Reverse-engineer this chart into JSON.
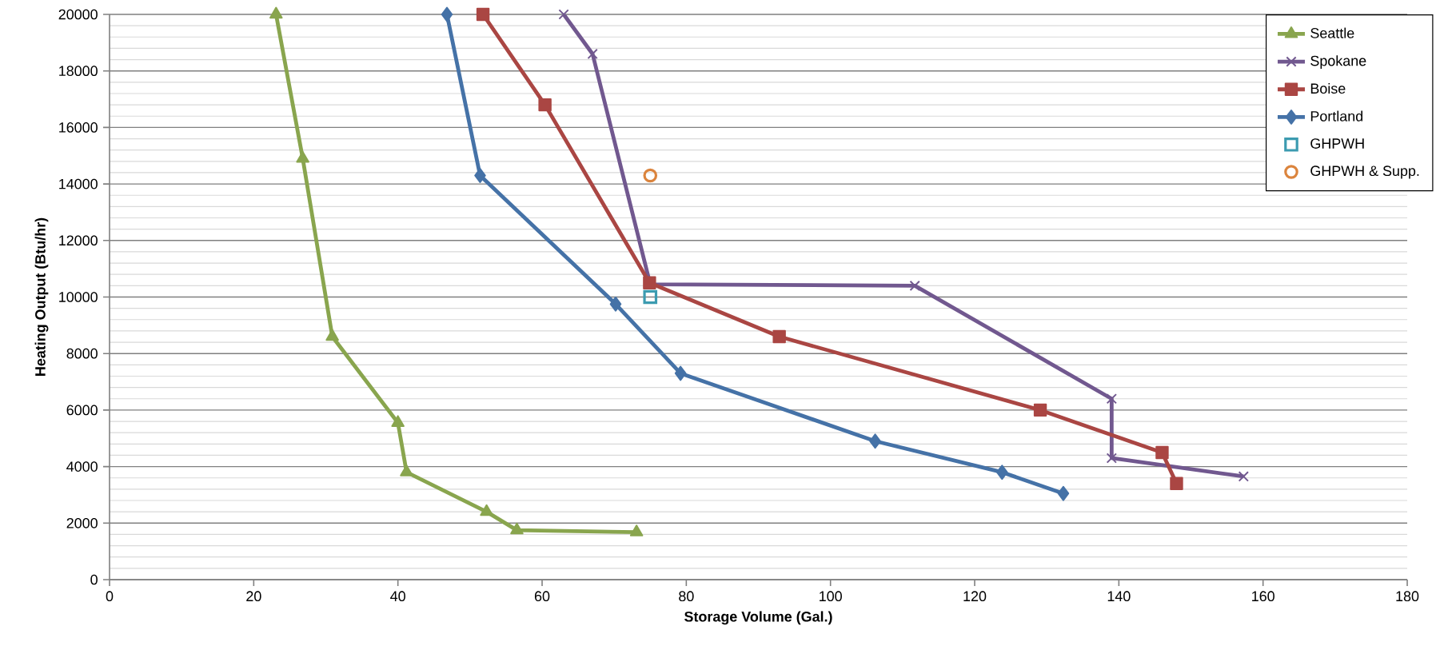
{
  "chart_data": {
    "type": "line",
    "xlabel": "Storage Volume (Gal.)",
    "ylabel": "Heating Output (Btu/hr)",
    "xlim": [
      0,
      180
    ],
    "xticks": [
      0,
      20,
      40,
      60,
      80,
      100,
      120,
      140,
      160,
      180
    ],
    "ylim": [
      0,
      20000
    ],
    "yticks": [
      0,
      2000,
      4000,
      6000,
      8000,
      10000,
      12000,
      14000,
      16000,
      18000,
      20000
    ],
    "grid": "y",
    "legend": "top right",
    "series": [
      {
        "name": "Seattle",
        "color": "#89a54e",
        "marker": "triangle",
        "x": [
          23.1,
          26.8,
          30.9,
          40.0,
          41.2,
          52.3,
          56.5,
          73.1
        ],
        "values": [
          20000,
          14900,
          8600,
          5550,
          3800,
          2400,
          1750,
          1680
        ]
      },
      {
        "name": "Spokane",
        "color": "#71588f",
        "marker": "cross",
        "x": [
          63.0,
          67.0,
          75.0,
          111.7,
          139.0,
          139.0,
          157.3
        ],
        "values": [
          20000,
          18600,
          10450,
          10400,
          6400,
          4300,
          3650
        ]
      },
      {
        "name": "Boise",
        "color": "#aa4643",
        "marker": "square",
        "x": [
          51.8,
          60.4,
          74.9,
          92.9,
          129.1,
          146.0,
          148.0
        ],
        "values": [
          20000,
          16800,
          10500,
          8600,
          6000,
          4500,
          3400
        ]
      },
      {
        "name": "Portland",
        "color": "#4572a7",
        "marker": "diamond",
        "x": [
          46.8,
          51.4,
          70.2,
          79.2,
          106.2,
          123.8,
          132.3
        ],
        "values": [
          20000,
          14300,
          9750,
          7300,
          4900,
          3800,
          3050
        ]
      },
      {
        "name": "GHPWH",
        "type": "scatter",
        "color": "#3c9bb0",
        "marker": "square",
        "x": [
          75.0
        ],
        "values": [
          10000
        ]
      },
      {
        "name": "GHPWH & Supp.",
        "type": "scatter",
        "color": "#db843d",
        "marker": "circle",
        "x": [
          75.0
        ],
        "values": [
          14300
        ]
      }
    ]
  }
}
